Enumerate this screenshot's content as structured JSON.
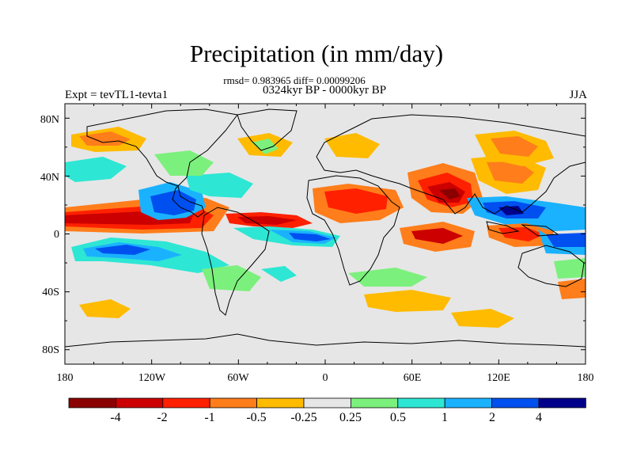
{
  "title": "Precipitation (in mm/day)",
  "stats_line": "rmsd= 0.983965 diff= 0.00099206",
  "period_line": "0324kyr BP - 0000kyr BP",
  "left_label": "Expt = tevTL1-tevta1",
  "right_label": "JJA",
  "chart_data": {
    "type": "heatmap",
    "title": "Precipitation (in mm/day)",
    "projection": "cylindrical-equidistant",
    "xlim": [
      -180,
      180
    ],
    "ylim": [
      -90,
      90
    ],
    "x_ticks": [
      "180",
      "120W",
      "60W",
      "0",
      "60E",
      "120E",
      "180"
    ],
    "y_ticks": [
      "80N",
      "40N",
      "0",
      "40S",
      "80S"
    ],
    "colorbar": {
      "labels": [
        "-4",
        "-2",
        "-1",
        "-0.5",
        "-0.25",
        "0.25",
        "0.5",
        "1",
        "2",
        "4"
      ],
      "colors": [
        "#8b0000",
        "#cc0000",
        "#ff2000",
        "#ff7d1a",
        "#ffbb00",
        "#e6e6e6",
        "#7cf07c",
        "#2ee6d4",
        "#1ab2ff",
        "#0050f0",
        "#00008b"
      ]
    },
    "background_color": "#e6e6e6",
    "anomaly_regions": [
      {
        "lon": -160,
        "lat": 10,
        "level": 1
      },
      {
        "lon": -130,
        "lat": 10,
        "level": 1
      },
      {
        "lon": -100,
        "lat": 13,
        "level": 2
      },
      {
        "lon": -80,
        "lat": 10,
        "level": 3
      },
      {
        "lon": -95,
        "lat": 15,
        "level": 9
      },
      {
        "lon": -60,
        "lat": 20,
        "level": 8
      },
      {
        "lon": -130,
        "lat": -8,
        "level": 9
      },
      {
        "lon": -100,
        "lat": -10,
        "level": 8
      },
      {
        "lon": -45,
        "lat": 4,
        "level": 2
      },
      {
        "lon": -10,
        "lat": -3,
        "level": 9
      },
      {
        "lon": 10,
        "lat": 12,
        "level": 2
      },
      {
        "lon": 20,
        "lat": 22,
        "level": 3
      },
      {
        "lon": 45,
        "lat": 10,
        "level": 1
      },
      {
        "lon": 70,
        "lat": 25,
        "level": 1
      },
      {
        "lon": 80,
        "lat": 15,
        "level": 0
      },
      {
        "lon": 85,
        "lat": 10,
        "level": 2
      },
      {
        "lon": 75,
        "lat": -3,
        "level": 1
      },
      {
        "lon": 100,
        "lat": 15,
        "level": 9
      },
      {
        "lon": 125,
        "lat": 10,
        "level": 9
      },
      {
        "lon": 140,
        "lat": 0,
        "level": 2
      },
      {
        "lon": 150,
        "lat": -5,
        "level": 9
      },
      {
        "lon": 110,
        "lat": 65,
        "level": 3
      },
      {
        "lon": 60,
        "lat": -45,
        "level": 3
      },
      {
        "lon": -150,
        "lat": 30,
        "level": 8
      }
    ]
  }
}
